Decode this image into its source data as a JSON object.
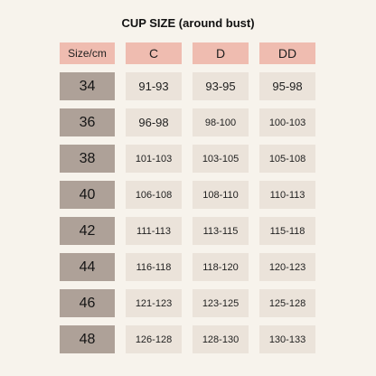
{
  "title": "CUP SIZE (around bust)",
  "headers": [
    "Size/cm",
    "C",
    "D",
    "DD"
  ],
  "rows": [
    {
      "size": "34",
      "c": "91-93",
      "d": "93-95",
      "dd": "95-98"
    },
    {
      "size": "36",
      "c": "96-98",
      "d": "98-100",
      "dd": "100-103"
    },
    {
      "size": "38",
      "c": "101-103",
      "d": "103-105",
      "dd": "105-108"
    },
    {
      "size": "40",
      "c": "106-108",
      "d": "108-110",
      "dd": "110-113"
    },
    {
      "size": "42",
      "c": "111-113",
      "d": "113-115",
      "dd": "115-118"
    },
    {
      "size": "44",
      "c": "116-118",
      "d": "118-120",
      "dd": "120-123"
    },
    {
      "size": "46",
      "c": "121-123",
      "d": "123-125",
      "dd": "125-128"
    },
    {
      "size": "48",
      "c": "126-128",
      "d": "128-130",
      "dd": "130-133"
    }
  ],
  "colors": {
    "background": "#f7f3ec",
    "header": "#efbcb0",
    "size_cell": "#aea198",
    "value_cell": "#ebe3da"
  }
}
